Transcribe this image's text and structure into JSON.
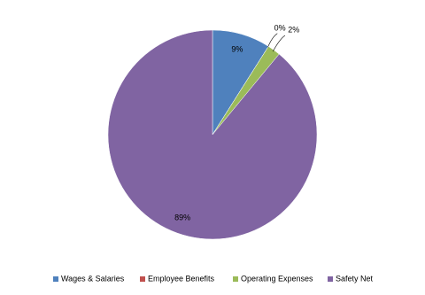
{
  "chart_data": {
    "type": "pie",
    "categories": [
      "Wages & Salaries",
      "Employee Benefits",
      "Operating Expenses",
      "Safety Net"
    ],
    "values": [
      9,
      0,
      2,
      89
    ],
    "value_labels": [
      "9%",
      "0%",
      "2%",
      "89%"
    ],
    "colors": [
      "#4f81bd",
      "#c0504d",
      "#9bbb59",
      "#8064a2"
    ],
    "legend": "bottom"
  }
}
